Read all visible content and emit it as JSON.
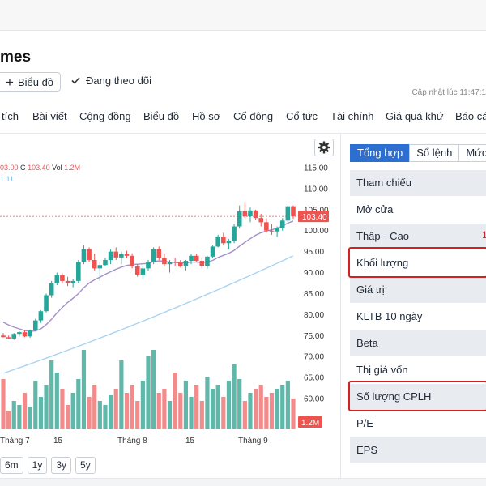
{
  "header": {
    "title_fragment": "mes",
    "chart_button": "Biểu đồ",
    "following": "Đang theo dõi",
    "updated": "Cập nhật lúc  11:47:1"
  },
  "tabs": [
    "tích",
    "Bài viết",
    "Cộng đồng",
    "Biểu đồ",
    "Hồ sơ",
    "Cổ đông",
    "Cổ tức",
    "Tài chính",
    "Giá quá khứ",
    "Báo cá"
  ],
  "chart": {
    "legend_prefix": "03.00",
    "legend_close_label": "C",
    "legend_close": "103.40",
    "legend_vol_label": "Vol",
    "legend_vol": "1.2M",
    "legend_ma": "1.11",
    "last_price_tag": "103.40",
    "volume_tag": "1.2M",
    "ranges": [
      "6m",
      "1y",
      "3y",
      "5y"
    ]
  },
  "chart_data": {
    "type": "line",
    "price_ticks": [
      "115.00",
      "110.00",
      "105.00",
      "100.00",
      "95.00",
      "90.00",
      "85.00",
      "80.00",
      "75.00",
      "70.00",
      "65.00",
      "60.00"
    ],
    "x_labels": [
      "Tháng 7",
      "15",
      "Tháng 8",
      "15",
      "Tháng 9"
    ],
    "ylim": [
      58,
      117
    ],
    "last_price": 103.4,
    "candles": [
      [
        75.0,
        75.6,
        74.6,
        74.6
      ],
      [
        74.6,
        75.0,
        74.2,
        74.3
      ],
      [
        74.3,
        75.6,
        74.0,
        75.4
      ],
      [
        75.4,
        76.0,
        74.8,
        75.8
      ],
      [
        75.8,
        76.2,
        74.6,
        74.8
      ],
      [
        74.8,
        76.4,
        74.5,
        76.2
      ],
      [
        76.2,
        79.0,
        76.0,
        78.6
      ],
      [
        78.6,
        81.0,
        78.0,
        80.8
      ],
      [
        80.8,
        85.0,
        80.5,
        84.6
      ],
      [
        84.6,
        88.0,
        84.0,
        87.6
      ],
      [
        87.6,
        90.0,
        87.0,
        89.4
      ],
      [
        89.4,
        89.8,
        87.5,
        88.0
      ],
      [
        88.0,
        89.0,
        86.8,
        87.4
      ],
      [
        87.4,
        88.4,
        86.5,
        88.0
      ],
      [
        88.0,
        93.0,
        87.5,
        92.6
      ],
      [
        92.6,
        96.5,
        92.0,
        95.6
      ],
      [
        95.6,
        96.0,
        92.5,
        93.0
      ],
      [
        93.0,
        94.5,
        90.5,
        91.0
      ],
      [
        91.0,
        92.5,
        88.0,
        91.8
      ],
      [
        91.8,
        93.5,
        91.5,
        93.0
      ],
      [
        93.0,
        95.5,
        92.0,
        95.0
      ],
      [
        95.0,
        96.0,
        93.0,
        93.6
      ],
      [
        93.6,
        95.0,
        92.0,
        94.4
      ],
      [
        94.4,
        95.2,
        93.5,
        94.0
      ],
      [
        94.0,
        94.6,
        91.0,
        91.5
      ],
      [
        91.5,
        92.0,
        89.0,
        89.5
      ],
      [
        89.5,
        91.5,
        88.5,
        91.0
      ],
      [
        91.0,
        93.0,
        90.5,
        92.6
      ],
      [
        92.6,
        96.0,
        92.0,
        95.6
      ],
      [
        95.6,
        96.2,
        93.0,
        93.5
      ],
      [
        93.5,
        94.5,
        91.5,
        92.0
      ],
      [
        92.0,
        93.0,
        90.0,
        92.6
      ],
      [
        92.6,
        93.5,
        91.5,
        92.4
      ],
      [
        92.4,
        93.0,
        91.2,
        91.5
      ],
      [
        91.5,
        93.0,
        90.5,
        92.8
      ],
      [
        92.8,
        94.5,
        92.0,
        94.0
      ],
      [
        94.0,
        94.5,
        92.5,
        92.8
      ],
      [
        92.8,
        93.4,
        91.0,
        91.6
      ],
      [
        91.6,
        94.0,
        91.0,
        93.8
      ],
      [
        93.8,
        96.5,
        93.5,
        96.2
      ],
      [
        96.2,
        99.0,
        96.0,
        98.6
      ],
      [
        98.6,
        99.5,
        96.5,
        97.0
      ],
      [
        97.0,
        98.0,
        95.5,
        97.6
      ],
      [
        97.6,
        101.5,
        97.0,
        101.0
      ],
      [
        101.0,
        106.0,
        100.5,
        104.6
      ],
      [
        104.6,
        106.8,
        103.0,
        103.4
      ],
      [
        103.4,
        105.5,
        102.0,
        104.8
      ],
      [
        104.8,
        105.0,
        102.5,
        103.0
      ],
      [
        103.0,
        104.0,
        101.0,
        102.0
      ],
      [
        102.0,
        103.0,
        99.5,
        100.0
      ],
      [
        100.0,
        101.5,
        99.0,
        99.8
      ],
      [
        99.8,
        101.0,
        98.5,
        100.6
      ],
      [
        100.6,
        103.0,
        100.0,
        102.4
      ],
      [
        102.4,
        106.0,
        102.0,
        105.8
      ],
      [
        105.8,
        106.0,
        102.8,
        103.4
      ]
    ],
    "volumes": [
      0.62,
      0.22,
      0.35,
      0.3,
      0.45,
      0.28,
      0.6,
      0.4,
      0.55,
      0.85,
      0.7,
      0.5,
      0.3,
      0.45,
      0.62,
      0.98,
      0.4,
      0.55,
      0.35,
      0.3,
      0.42,
      0.5,
      0.85,
      0.45,
      0.55,
      0.35,
      0.6,
      0.9,
      0.98,
      0.45,
      0.5,
      0.35,
      0.7,
      0.45,
      0.6,
      0.4,
      0.55,
      0.35,
      0.65,
      0.5,
      0.55,
      0.4,
      0.6,
      0.8,
      0.62,
      0.35,
      0.45,
      0.5,
      0.55,
      0.4,
      0.45,
      0.5,
      0.55,
      0.6,
      0.38
    ],
    "ma_short": [
      78.2,
      77.5,
      77.0,
      76.6,
      76.2,
      76.0,
      76.1,
      76.6,
      77.6,
      78.9,
      80.4,
      81.7,
      82.9,
      83.9,
      85.0,
      86.4,
      87.5,
      88.3,
      88.9,
      89.6,
      90.2,
      90.8,
      91.3,
      91.7,
      91.9,
      92.0,
      92.1,
      92.2,
      92.6,
      92.8,
      92.7,
      92.5,
      92.4,
      92.3,
      92.3,
      92.5,
      92.5,
      92.4,
      92.5,
      92.9,
      93.6,
      94.1,
      94.6,
      95.3,
      96.3,
      97.2,
      98.1,
      98.9,
      99.5,
      99.9,
      100.2,
      100.6,
      101.1,
      101.8,
      102.3
    ],
    "ma_long_start": 66.0,
    "ma_long_end": 94.0
  },
  "stats": {
    "tabs": [
      "Tổng hợp",
      "Sổ lệnh",
      "Mức"
    ],
    "rows": [
      "Tham chiếu",
      "Mở cửa",
      "Thấp - Cao",
      "Khối lượng",
      "Giá trị",
      "KLTB 10 ngày",
      "Beta",
      "Thị giá vốn",
      "Số lượng CPLH",
      "P/E",
      "EPS"
    ],
    "hint": "1"
  },
  "colors": {
    "up": "#26a69a",
    "down": "#ef5350",
    "vol_up": "#5fb8aa",
    "vol_down": "#f28b8b",
    "accent": "#2d6ed1",
    "highlight": "#d32020"
  }
}
